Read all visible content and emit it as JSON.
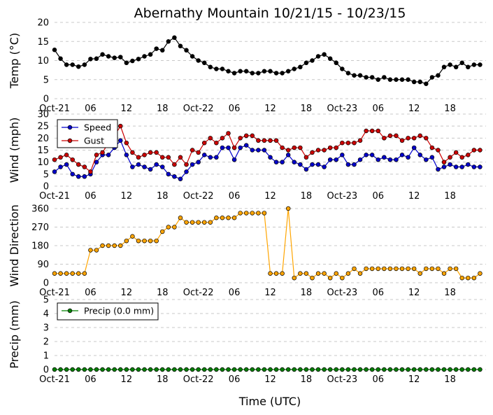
{
  "chart_data": {
    "type": "line",
    "title": "Abernathy Mountain 10/21/15 - 10/23/15",
    "xlabel": "Time (UTC)",
    "x_hours": [
      0,
      1,
      2,
      3,
      4,
      5,
      6,
      7,
      8,
      9,
      10,
      11,
      12,
      13,
      14,
      15,
      16,
      17,
      18,
      19,
      20,
      21,
      22,
      23,
      24,
      25,
      26,
      27,
      28,
      29,
      30,
      31,
      32,
      33,
      34,
      35,
      36,
      37,
      38,
      39,
      40,
      41,
      42,
      43,
      44,
      45,
      46,
      47,
      48,
      49,
      50,
      51,
      52,
      53,
      54,
      55,
      56,
      57,
      58,
      59,
      60,
      61,
      62,
      63,
      64,
      65,
      66,
      67,
      68,
      69,
      70,
      71
    ],
    "x_ticks": [
      0,
      6,
      12,
      18,
      24,
      30,
      36,
      42,
      48,
      54,
      60,
      66
    ],
    "x_tick_labels": [
      "Oct-21",
      "06",
      "12",
      "18",
      "Oct-22",
      "06",
      "12",
      "18",
      "Oct-23",
      "06",
      "12",
      "18"
    ],
    "panels": [
      {
        "ylabel": "Temp (°C)",
        "ylim": [
          0,
          20
        ],
        "yticks": [
          0,
          5,
          10,
          15,
          20
        ],
        "series": [
          {
            "name": "Temp",
            "color": "#000000",
            "line_color": "#000000",
            "values": [
              12.8,
              10.5,
              8.9,
              8.9,
              8.4,
              8.9,
              10.4,
              10.5,
              11.6,
              11.1,
              10.7,
              10.9,
              9.4,
              9.9,
              10.4,
              11.1,
              11.6,
              13.1,
              12.7,
              15,
              16,
              13.8,
              12.7,
              11.1,
              10,
              9.4,
              8.3,
              7.8,
              7.8,
              7.2,
              6.7,
              7.2,
              7.2,
              6.7,
              6.7,
              7.2,
              7.2,
              6.7,
              6.7,
              7.2,
              7.8,
              8.3,
              9.4,
              10,
              11.1,
              11.6,
              10.5,
              9.4,
              7.8,
              6.7,
              6.1,
              6.1,
              5.6,
              5.6,
              5,
              5.6,
              5,
              5,
              5,
              5,
              4.4,
              4.4,
              3.9,
              5.6,
              6.1,
              8.3,
              8.9,
              8.3,
              9.4,
              8.3,
              8.9,
              8.9
            ]
          }
        ]
      },
      {
        "ylabel": "Wind (mph)",
        "ylim": [
          0,
          30
        ],
        "yticks": [
          0,
          5,
          10,
          15,
          20,
          25,
          30
        ],
        "legend": [
          "Speed",
          "Gust"
        ],
        "series": [
          {
            "name": "Speed",
            "color": "#0000cc",
            "line_color": "#0000cc",
            "values": [
              6,
              8,
              9,
              5,
              4,
              4,
              5,
              10,
              13,
              13,
              16,
              19,
              13,
              8,
              9,
              8,
              7,
              9,
              8,
              5,
              4,
              3,
              6,
              9,
              10,
              13,
              12,
              12,
              16,
              16,
              11,
              16,
              17,
              15,
              15,
              15,
              12,
              10,
              10,
              13,
              10,
              9,
              7,
              9,
              9,
              8,
              11,
              11,
              13,
              9,
              9,
              11,
              13,
              13,
              11,
              12,
              11,
              11,
              13,
              12,
              16,
              13,
              11,
              12,
              7,
              8,
              9,
              8,
              8,
              9,
              8,
              8
            ]
          },
          {
            "name": "Gust",
            "color": "#cc0000",
            "line_color": "#cc0000",
            "values": [
              11,
              12,
              13,
              11,
              9,
              8,
              6,
              13,
              14,
              18,
              21,
              25,
              18,
              14,
              12,
              13,
              14,
              14,
              12,
              12,
              9,
              12,
              9,
              15,
              14,
              18,
              20,
              18,
              20,
              22,
              16,
              20,
              21,
              21,
              19,
              19,
              19,
              19,
              16,
              15,
              16,
              16,
              12,
              14,
              15,
              15,
              16,
              16,
              18,
              18,
              18,
              19,
              23,
              23,
              23,
              20,
              21,
              21,
              19,
              20,
              20,
              21,
              20,
              16,
              15,
              10,
              12,
              14,
              12,
              13,
              15,
              15
            ]
          }
        ]
      },
      {
        "ylabel": "Wind Direction",
        "ylim": [
          0,
          360
        ],
        "yticks": [
          0,
          90,
          180,
          270,
          360
        ],
        "series": [
          {
            "name": "Direction",
            "color": "#ffa500",
            "line_color": "#ffa500",
            "values": [
              45,
              45,
              45,
              45,
              45,
              45,
              158,
              158,
              180,
              180,
              180,
              180,
              203,
              225,
              203,
              203,
              203,
              203,
              248,
              270,
              270,
              315,
              293,
              293,
              293,
              293,
              293,
              315,
              315,
              315,
              315,
              338,
              338,
              338,
              338,
              338,
              45,
              45,
              45,
              360,
              23,
              45,
              45,
              23,
              45,
              45,
              23,
              45,
              23,
              45,
              68,
              45,
              68,
              68,
              68,
              68,
              68,
              68,
              68,
              68,
              68,
              45,
              68,
              68,
              68,
              45,
              68,
              68,
              23,
              23,
              23,
              45
            ]
          }
        ]
      },
      {
        "ylabel": "Precip (mm)",
        "ylim": [
          0,
          5
        ],
        "yticks": [
          0,
          1,
          2,
          3,
          4,
          5
        ],
        "legend": [
          "Precip (0.0 mm)"
        ],
        "series": [
          {
            "name": "Precip (0.0 mm)",
            "color": "#008000",
            "line_color": "#008000",
            "values": [
              0,
              0,
              0,
              0,
              0,
              0,
              0,
              0,
              0,
              0,
              0,
              0,
              0,
              0,
              0,
              0,
              0,
              0,
              0,
              0,
              0,
              0,
              0,
              0,
              0,
              0,
              0,
              0,
              0,
              0,
              0,
              0,
              0,
              0,
              0,
              0,
              0,
              0,
              0,
              0,
              0,
              0,
              0,
              0,
              0,
              0,
              0,
              0,
              0,
              0,
              0,
              0,
              0,
              0,
              0,
              0,
              0,
              0,
              0,
              0,
              0,
              0,
              0,
              0,
              0,
              0,
              0,
              0,
              0,
              0,
              0,
              0
            ]
          }
        ]
      }
    ]
  }
}
